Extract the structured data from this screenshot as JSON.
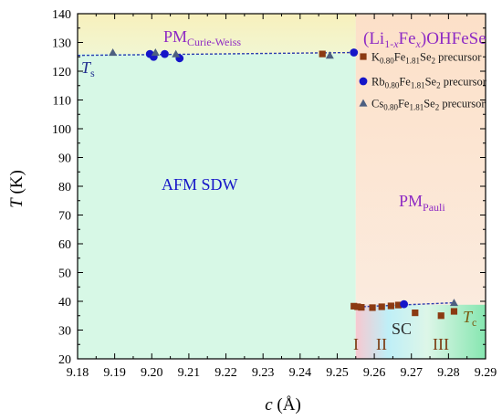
{
  "chart_data": {
    "type": "scatter",
    "x_axis": {
      "label_var": "c",
      "label_unit": " (Å)",
      "range": [
        9.18,
        9.29
      ],
      "ticks": [
        "9.18",
        "9.19",
        "9.20",
        "9.21",
        "9.22",
        "9.23",
        "9.24",
        "9.25",
        "9.26",
        "9.27",
        "9.28",
        "9.29"
      ]
    },
    "y_axis": {
      "label_var": "T",
      "label_unit": " (K)",
      "range": [
        20,
        140
      ],
      "ticks": [
        "20",
        "30",
        "40",
        "50",
        "60",
        "70",
        "80",
        "90",
        "100",
        "110",
        "120",
        "130",
        "140"
      ]
    },
    "grid": false,
    "legend_position": "top-right",
    "legend_title": {
      "part1": "(Li",
      "sub1": "1-",
      "sub1_var": "x",
      "part2": "Fe",
      "sub2_var": "x",
      "part3": ")OHFeSe"
    },
    "series": [
      {
        "name": "K0.80Fe1.81Se2 precursor",
        "label": {
          "el1": "K",
          "s1": "0.80",
          "el2": "Fe",
          "s2": "1.81",
          "el3": "Se",
          "s3": "2",
          "suffix": " precursor"
        },
        "marker": "square",
        "color": "#8B3A12",
        "points": [
          [
            9.246,
            126
          ],
          [
            9.2545,
            38.3
          ],
          [
            9.2555,
            38.1
          ],
          [
            9.2565,
            37.9
          ],
          [
            9.2595,
            37.8
          ],
          [
            9.262,
            38.1
          ],
          [
            9.2645,
            38.4
          ],
          [
            9.2665,
            38.7
          ],
          [
            9.271,
            36
          ],
          [
            9.278,
            35
          ],
          [
            9.2815,
            36.5
          ]
        ]
      },
      {
        "name": "Rb0.80Fe1.81Se2 precursor",
        "label": {
          "el1": "Rb",
          "s1": "0.80",
          "el2": "Fe",
          "s2": "1.81",
          "el3": "Se",
          "s3": "2",
          "suffix": " precursor"
        },
        "marker": "circle",
        "color": "#1515C8",
        "points": [
          [
            9.1995,
            126
          ],
          [
            9.2005,
            125
          ],
          [
            9.2035,
            126
          ],
          [
            9.2075,
            124.5
          ],
          [
            9.2545,
            126.5
          ],
          [
            9.268,
            39
          ]
        ]
      },
      {
        "name": "Cs0.80Fe1.81Se2 precursor",
        "label": {
          "el1": "Cs",
          "s1": "0.80",
          "el2": "Fe",
          "s2": "1.81",
          "el3": "Se",
          "s3": "2",
          "suffix": " precursor"
        },
        "marker": "triangle",
        "color": "#4D5F80",
        "points": [
          [
            9.1895,
            126.5
          ],
          [
            9.201,
            126.5
          ],
          [
            9.2065,
            126
          ],
          [
            9.248,
            125.5
          ],
          [
            9.2815,
            39.5
          ]
        ]
      }
    ],
    "boundary_x": 9.255,
    "boundary_lines": [
      {
        "name": "Ts-line",
        "x": [
          9.18,
          9.255
        ],
        "y": [
          125.5,
          126.5
        ]
      },
      {
        "name": "Tc-line",
        "x": [
          9.2545,
          9.2815
        ],
        "y": [
          38.0,
          39.5
        ]
      }
    ],
    "regions": {
      "pm_curie_weiss": {
        "main": "PM",
        "sub": "Curie-Weiss",
        "color": "#8E2AC4"
      },
      "ts": {
        "main": "T",
        "sub": "s",
        "color": "#1F2C8F"
      },
      "afm_sdw": {
        "text": "AFM SDW",
        "color": "#1515C8"
      },
      "pm_pauli": {
        "main": "PM",
        "sub": "Pauli",
        "color": "#8E2AC4"
      },
      "sc": {
        "text": "SC",
        "color": "#2B2B2B"
      },
      "tc": {
        "main": "T",
        "sub": "c",
        "color": "#7A5A10"
      },
      "phase_I": {
        "text": "I",
        "color": "#7A3A10"
      },
      "phase_II": {
        "text": "II",
        "color": "#7A3A10"
      },
      "phase_III": {
        "text": "III",
        "color": "#7A3A10"
      }
    },
    "colors": {
      "afm_fill": "#D7F8E6",
      "pm_cw_fill": "#F8F2C2",
      "pauli_fill": "#FCE6D2",
      "sc_fill": "#DDF4E8",
      "dashed_line": "#2E3FB0"
    }
  }
}
